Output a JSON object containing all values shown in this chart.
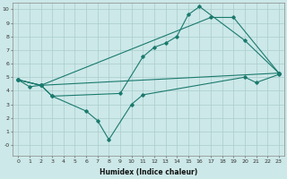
{
  "xlabel": "Humidex (Indice chaleur)",
  "bg_color": "#cce8e8",
  "grid_color": "#aacccc",
  "line_color": "#1a7a6e",
  "xlim": [
    -0.5,
    23.5
  ],
  "ylim": [
    -0.8,
    10.5
  ],
  "xticks": [
    0,
    1,
    2,
    3,
    4,
    5,
    6,
    7,
    8,
    9,
    10,
    11,
    12,
    13,
    14,
    15,
    16,
    17,
    18,
    19,
    20,
    21,
    22,
    23
  ],
  "yticks": [
    0,
    1,
    2,
    3,
    4,
    5,
    6,
    7,
    8,
    9,
    10
  ],
  "ytick_labels": [
    "-0",
    "1",
    "2",
    "3",
    "4",
    "5",
    "6",
    "7",
    "8",
    "9",
    "10"
  ],
  "line1_x": [
    0,
    1,
    2,
    3,
    9,
    11,
    12,
    13,
    14,
    15,
    16,
    20,
    23
  ],
  "line1_y": [
    4.8,
    4.3,
    4.4,
    3.6,
    3.8,
    6.5,
    7.2,
    7.5,
    8.0,
    9.6,
    10.2,
    7.7,
    5.3
  ],
  "line2_x": [
    0,
    2,
    17,
    19,
    23
  ],
  "line2_y": [
    4.8,
    4.4,
    9.4,
    9.4,
    5.3
  ],
  "line3_x": [
    0,
    2,
    3,
    6,
    7,
    8,
    10,
    11,
    20,
    21,
    23
  ],
  "line3_y": [
    4.8,
    4.4,
    3.6,
    2.5,
    1.8,
    0.4,
    3.0,
    3.7,
    5.0,
    4.6,
    5.2
  ],
  "line4_x": [
    0,
    2,
    23
  ],
  "line4_y": [
    4.8,
    4.4,
    5.3
  ]
}
